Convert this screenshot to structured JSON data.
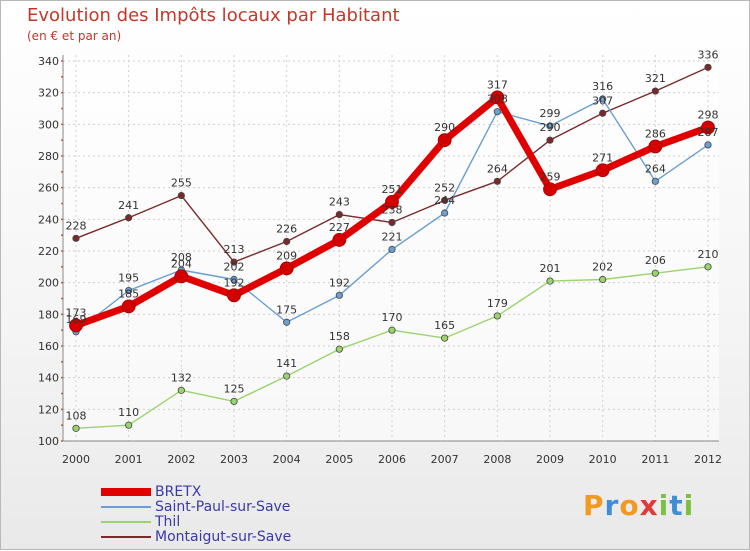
{
  "chart_data": {
    "type": "line",
    "title": "Evolution des Impôts locaux par Habitant",
    "subtitle": "(en € et par an)",
    "xlabel": "",
    "ylabel": "",
    "x": [
      "2000",
      "2001",
      "2002",
      "2003",
      "2004",
      "2005",
      "2006",
      "2007",
      "2008",
      "2009",
      "2010",
      "2011",
      "2012"
    ],
    "ylim": [
      100,
      340
    ],
    "yticks": [
      100,
      120,
      140,
      160,
      180,
      200,
      220,
      240,
      260,
      280,
      300,
      320,
      340
    ],
    "grid": true,
    "series": [
      {
        "name": "BRETX",
        "color": "#e00000",
        "values": [
          173,
          185,
          204,
          192,
          209,
          227,
          251,
          290,
          317,
          259,
          271,
          286,
          298
        ]
      },
      {
        "name": "Saint-Paul-sur-Save",
        "color": "#6a9fcf",
        "values": [
          169,
          195,
          208,
          202,
          175,
          192,
          221,
          244,
          308,
          299,
          316,
          264,
          287
        ]
      },
      {
        "name": "Thil",
        "color": "#9bd46e",
        "values": [
          108,
          110,
          132,
          125,
          141,
          158,
          170,
          165,
          179,
          201,
          202,
          206,
          210
        ]
      },
      {
        "name": "Montaigut-sur-Save",
        "color": "#7a2a2a",
        "values": [
          228,
          241,
          255,
          213,
          226,
          243,
          238,
          252,
          264,
          290,
          307,
          321,
          336
        ]
      }
    ]
  },
  "brand": {
    "letters": [
      "P",
      "r",
      "o",
      "x",
      "i",
      "t",
      "i"
    ],
    "colors": [
      "#f29a1f",
      "#3f8ed6",
      "#f29a1f",
      "#e03a3a",
      "#7bc043",
      "#3f8ed6",
      "#7bc043"
    ]
  }
}
